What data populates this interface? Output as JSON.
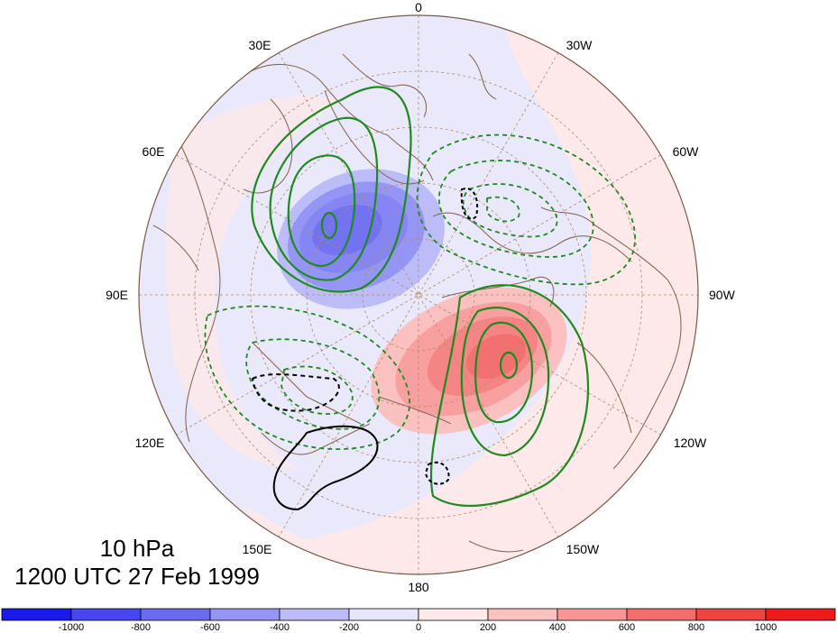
{
  "map": {
    "longitude_labels": [
      "0",
      "30W",
      "60W",
      "90W",
      "120W",
      "150W",
      "180",
      "150E",
      "120E",
      "90E",
      "60E",
      "30E"
    ],
    "level": "10 hPa",
    "time": "1200 UTC 27 Feb 1999"
  },
  "colorbar": {
    "colors": [
      "#1a1aee",
      "#4646f0",
      "#6b6bf2",
      "#9595f5",
      "#bcbcf8",
      "#e6e6fc",
      "#fde9e9",
      "#fbc0c0",
      "#f89696",
      "#f56c6c",
      "#f24343",
      "#ee1a1a"
    ],
    "labels": [
      "-1000",
      "-800",
      "-600",
      "-400",
      "-200",
      "0",
      "200",
      "400",
      "600",
      "800",
      "1000"
    ]
  },
  "style_colors": {
    "positive_contour": "#1f8a1f",
    "negative_contour": "#1f8a1f",
    "zero_contour": "#000000",
    "coastline": "#8b6a55",
    "grid": "#b48a6a"
  }
}
